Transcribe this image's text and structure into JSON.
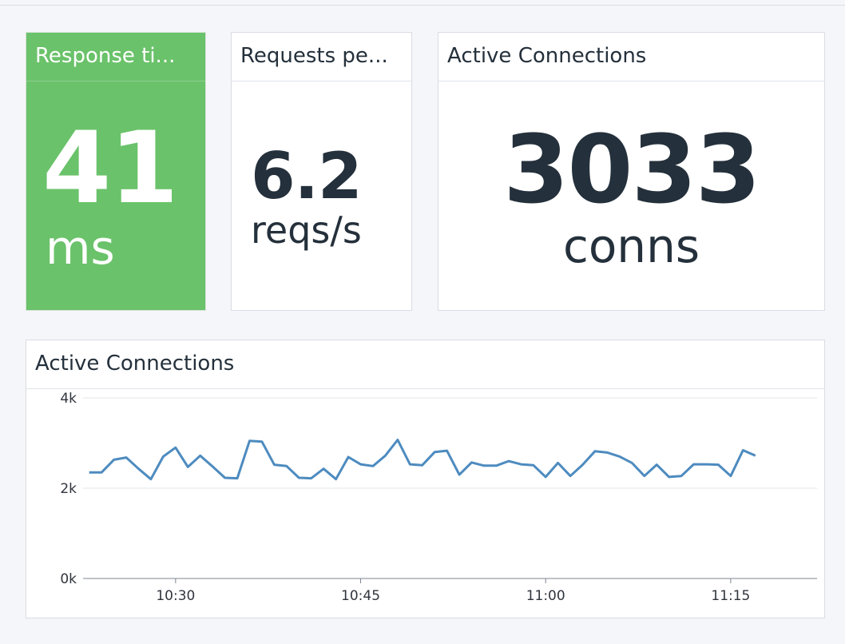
{
  "panels": {
    "response": {
      "title": "Response ti...",
      "value": "41",
      "unit": "ms",
      "color": "#6ac26a"
    },
    "requests": {
      "title": "Requests pe...",
      "value": "6.2",
      "unit": "reqs/s"
    },
    "active": {
      "title": "Active Connections",
      "value": "3033",
      "unit": "conns"
    }
  },
  "graph_panel": {
    "title": "Active Connections"
  },
  "chart_data": {
    "type": "line",
    "xlabel": "",
    "ylabel": "",
    "y_tick_labels": [
      "0k",
      "2k",
      "4k"
    ],
    "y_ticks": [
      0,
      2000,
      4000
    ],
    "ylim": [
      0,
      4000
    ],
    "x_tick_labels": [
      "10:30",
      "10:45",
      "11:00",
      "11:15"
    ],
    "x_ticks": [
      30,
      45,
      60,
      75
    ],
    "xlim": [
      22.5,
      82
    ],
    "grid": "horizontal",
    "line_color": "#4d8bbf",
    "series": [
      {
        "x": [
          23,
          24,
          25,
          26,
          27,
          28,
          29,
          30,
          31,
          32,
          33,
          34,
          35,
          36,
          37,
          38,
          39,
          40,
          41,
          42,
          43,
          44,
          45,
          46,
          47,
          48,
          49,
          50,
          51,
          52,
          53,
          54,
          55,
          56,
          57,
          58,
          59,
          60,
          61,
          62,
          63,
          64,
          65,
          66,
          67,
          68,
          69,
          70,
          71,
          72,
          73,
          74,
          75,
          76,
          77
        ],
        "values": [
          2350,
          2350,
          2630,
          2680,
          2430,
          2200,
          2700,
          2900,
          2470,
          2720,
          2480,
          2230,
          2220,
          3050,
          3030,
          2520,
          2490,
          2230,
          2220,
          2430,
          2200,
          2690,
          2530,
          2490,
          2720,
          3070,
          2530,
          2510,
          2800,
          2830,
          2300,
          2570,
          2500,
          2500,
          2600,
          2530,
          2510,
          2250,
          2560,
          2270,
          2520,
          2820,
          2790,
          2700,
          2560,
          2270,
          2520,
          2250,
          2270,
          2530,
          2530,
          2520,
          2270,
          2840,
          2720
        ]
      }
    ]
  }
}
